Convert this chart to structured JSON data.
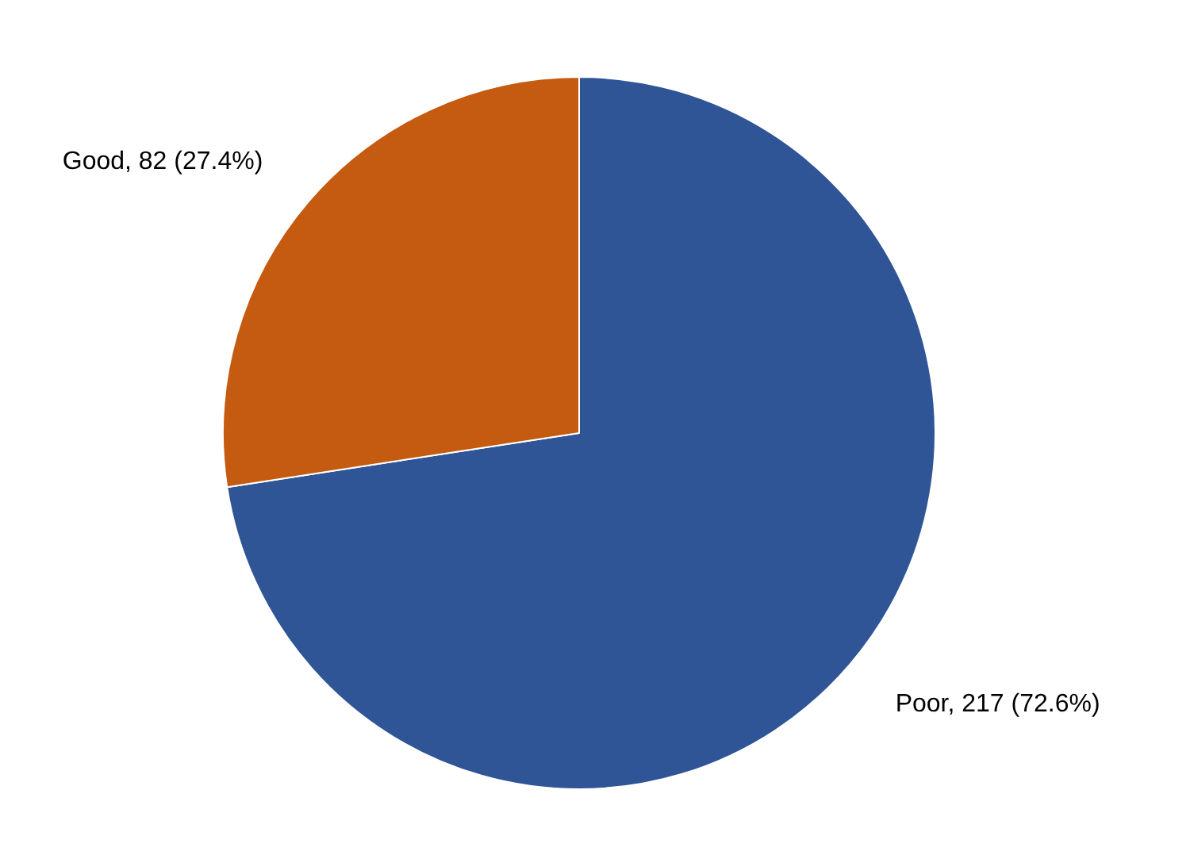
{
  "chart_data": {
    "type": "pie",
    "categories": [
      "Poor",
      "Good"
    ],
    "values": [
      217,
      82
    ],
    "colors": [
      "#2f5597",
      "#c55a11"
    ],
    "value_labels": [
      "217 (72.6%)",
      "82 (27.4%)"
    ],
    "legend": false
  }
}
